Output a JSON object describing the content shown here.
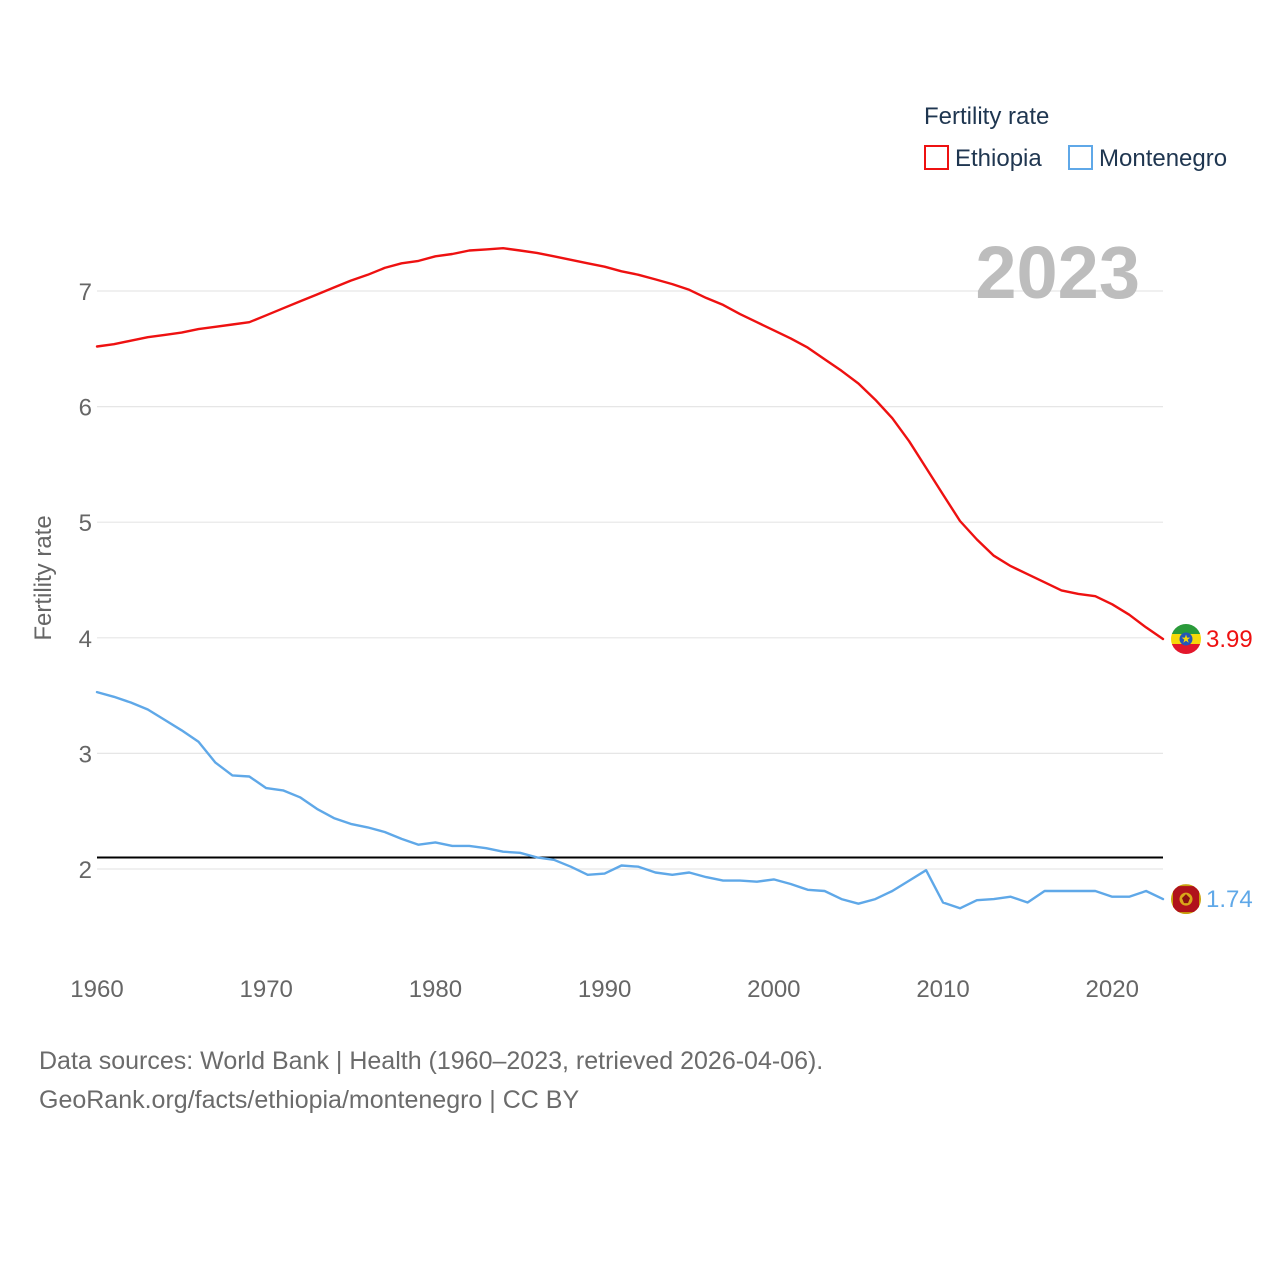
{
  "chart_data": {
    "type": "line",
    "title": "",
    "legend": {
      "title": "Fertility rate",
      "placement": "top-right",
      "entries": [
        {
          "name": "Ethiopia",
          "color": "#ee1111"
        },
        {
          "name": "Montenegro",
          "color": "#5fa8e8"
        }
      ]
    },
    "current_year": "2023",
    "xlabel": "",
    "ylabel": "Fertility rate",
    "xlim": [
      1960,
      2023
    ],
    "ylim": [
      1.2,
      7.7
    ],
    "x_ticks": [
      1960,
      1970,
      1980,
      1990,
      2000,
      2010,
      2020
    ],
    "y_ticks": [
      2,
      3,
      4,
      5,
      6,
      7
    ],
    "grid": true,
    "reference_line": {
      "value": 2.1,
      "color": "#000000"
    },
    "x": [
      1960,
      1961,
      1962,
      1963,
      1964,
      1965,
      1966,
      1967,
      1968,
      1969,
      1970,
      1971,
      1972,
      1973,
      1974,
      1975,
      1976,
      1977,
      1978,
      1979,
      1980,
      1981,
      1982,
      1983,
      1984,
      1985,
      1986,
      1987,
      1988,
      1989,
      1990,
      1991,
      1992,
      1993,
      1994,
      1995,
      1996,
      1997,
      1998,
      1999,
      2000,
      2001,
      2002,
      2003,
      2004,
      2005,
      2006,
      2007,
      2008,
      2009,
      2010,
      2011,
      2012,
      2013,
      2014,
      2015,
      2016,
      2017,
      2018,
      2019,
      2020,
      2021,
      2022,
      2023
    ],
    "series": [
      {
        "name": "Ethiopia",
        "color": "#ee1111",
        "end_label": "3.99",
        "values": [
          6.52,
          6.54,
          6.57,
          6.6,
          6.62,
          6.64,
          6.67,
          6.69,
          6.71,
          6.73,
          6.79,
          6.85,
          6.91,
          6.97,
          7.03,
          7.09,
          7.14,
          7.2,
          7.24,
          7.26,
          7.3,
          7.32,
          7.35,
          7.36,
          7.37,
          7.35,
          7.33,
          7.3,
          7.27,
          7.24,
          7.21,
          7.17,
          7.14,
          7.1,
          7.06,
          7.01,
          6.94,
          6.88,
          6.8,
          6.73,
          6.66,
          6.59,
          6.51,
          6.41,
          6.31,
          6.2,
          6.06,
          5.9,
          5.7,
          5.47,
          5.24,
          5.01,
          4.85,
          4.71,
          4.62,
          4.55,
          4.48,
          4.41,
          4.38,
          4.36,
          4.29,
          4.2,
          4.09,
          3.99
        ]
      },
      {
        "name": "Montenegro",
        "color": "#5fa8e8",
        "end_label": "1.74",
        "values": [
          3.53,
          3.49,
          3.44,
          3.38,
          3.29,
          3.2,
          3.1,
          2.92,
          2.81,
          2.8,
          2.7,
          2.68,
          2.62,
          2.52,
          2.44,
          2.39,
          2.36,
          2.32,
          2.26,
          2.21,
          2.23,
          2.2,
          2.2,
          2.18,
          2.15,
          2.14,
          2.1,
          2.08,
          2.02,
          1.95,
          1.96,
          2.03,
          2.02,
          1.97,
          1.95,
          1.97,
          1.93,
          1.9,
          1.9,
          1.89,
          1.91,
          1.87,
          1.82,
          1.81,
          1.74,
          1.7,
          1.74,
          1.81,
          1.9,
          1.99,
          1.71,
          1.66,
          1.73,
          1.74,
          1.76,
          1.71,
          1.81,
          1.81,
          1.81,
          1.81,
          1.76,
          1.76,
          1.81,
          1.74
        ]
      }
    ]
  },
  "footer": {
    "line1": "Data sources: World Bank | Health (1960–2023, retrieved 2026-04-06).",
    "line2": "GeoRank.org/facts/ethiopia/montenegro | CC BY"
  }
}
